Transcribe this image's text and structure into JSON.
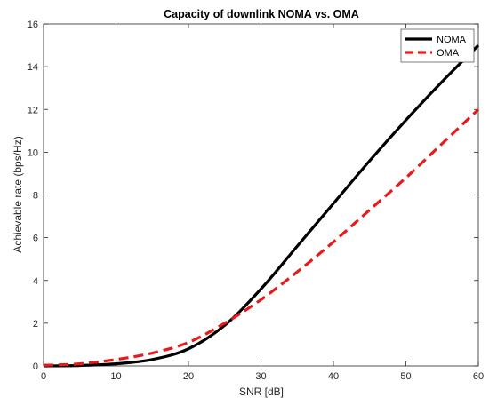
{
  "chart_data": {
    "type": "line",
    "title": "Capacity of downlink NOMA vs. OMA",
    "xlabel": "SNR [dB]",
    "ylabel": "Achievable rate (bps/Hz)",
    "xlim": [
      0,
      60
    ],
    "ylim": [
      0,
      16
    ],
    "xticks": [
      0,
      10,
      20,
      30,
      40,
      50,
      60
    ],
    "yticks": [
      0,
      2,
      4,
      6,
      8,
      10,
      12,
      14,
      16
    ],
    "grid": false,
    "legend_position": "top-right",
    "series": [
      {
        "name": "NOMA",
        "color": "#000000",
        "style": "solid",
        "x": [
          0,
          5,
          10,
          15,
          20,
          25,
          30,
          35,
          40,
          45,
          50,
          55,
          60
        ],
        "y": [
          0.0,
          0.02,
          0.1,
          0.3,
          0.8,
          1.9,
          3.6,
          5.6,
          7.6,
          9.6,
          11.5,
          13.3,
          15.0
        ]
      },
      {
        "name": "OMA",
        "color": "#e41a1c",
        "style": "dashed",
        "x": [
          0,
          5,
          10,
          15,
          20,
          25,
          30,
          35,
          40,
          45,
          50,
          55,
          60
        ],
        "y": [
          0.03,
          0.1,
          0.3,
          0.6,
          1.1,
          2.0,
          3.1,
          4.4,
          5.8,
          7.3,
          8.8,
          10.4,
          12.0
        ]
      }
    ]
  }
}
